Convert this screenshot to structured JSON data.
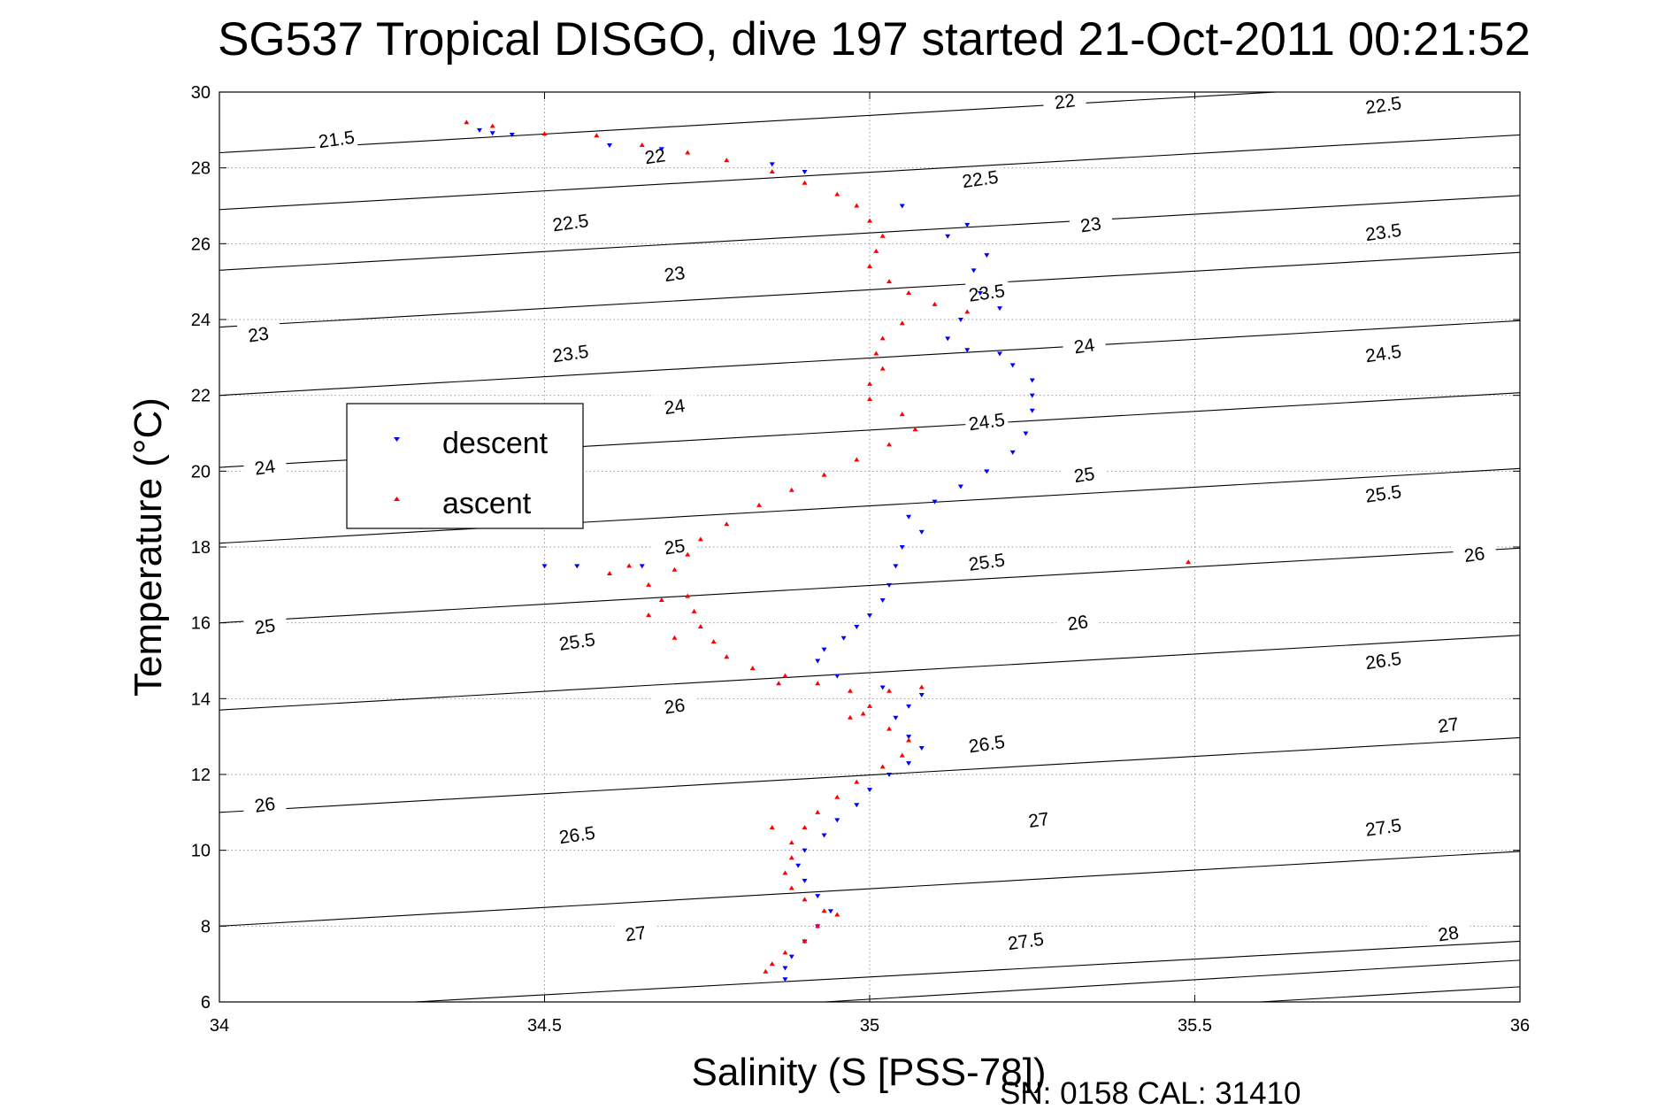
{
  "chart_data": {
    "type": "scatter",
    "title": "SG537 Tropical DISGO, dive 197 started 21-Oct-2011 00:21:52",
    "xlabel": "Salinity (S [PSS-78])",
    "ylabel": "Temperature (°C)",
    "footer": "SN: 0158  CAL: 31410",
    "xlim": [
      34,
      36
    ],
    "ylim": [
      6,
      30
    ],
    "xticks": [
      "34",
      "34.5",
      "35",
      "35.5",
      "36"
    ],
    "yticks": [
      "6",
      "8",
      "10",
      "12",
      "14",
      "16",
      "18",
      "20",
      "22",
      "24",
      "26",
      "28",
      "30"
    ],
    "grid": true,
    "legend_position": "upper-left",
    "legend": [
      "descent",
      "ascent"
    ],
    "series": [
      {
        "name": "descent",
        "color": "#0000ff",
        "marker": "triangle-down",
        "points": [
          [
            34.4,
            29.0
          ],
          [
            34.42,
            28.92
          ],
          [
            34.45,
            28.88
          ],
          [
            34.6,
            28.6
          ],
          [
            34.68,
            28.5
          ],
          [
            34.85,
            28.1
          ],
          [
            34.9,
            27.9
          ],
          [
            35.05,
            27.0
          ],
          [
            35.15,
            26.5
          ],
          [
            35.12,
            26.2
          ],
          [
            35.18,
            25.7
          ],
          [
            35.16,
            25.3
          ],
          [
            35.17,
            24.7
          ],
          [
            35.2,
            24.3
          ],
          [
            35.14,
            24.0
          ],
          [
            35.12,
            23.5
          ],
          [
            35.15,
            23.2
          ],
          [
            35.2,
            23.1
          ],
          [
            35.22,
            22.8
          ],
          [
            35.25,
            22.4
          ],
          [
            35.25,
            22.0
          ],
          [
            35.25,
            21.6
          ],
          [
            35.24,
            21.0
          ],
          [
            35.22,
            20.5
          ],
          [
            35.18,
            20.0
          ],
          [
            35.14,
            19.6
          ],
          [
            35.1,
            19.2
          ],
          [
            35.06,
            18.8
          ],
          [
            35.08,
            18.4
          ],
          [
            35.05,
            18.0
          ],
          [
            35.04,
            17.5
          ],
          [
            35.03,
            17.0
          ],
          [
            35.02,
            16.6
          ],
          [
            35.0,
            16.2
          ],
          [
            34.98,
            15.9
          ],
          [
            34.96,
            15.6
          ],
          [
            34.93,
            15.3
          ],
          [
            34.92,
            15.0
          ],
          [
            34.95,
            14.6
          ],
          [
            35.02,
            14.3
          ],
          [
            35.08,
            14.1
          ],
          [
            35.06,
            13.8
          ],
          [
            35.04,
            13.5
          ],
          [
            35.06,
            13.0
          ],
          [
            35.08,
            12.7
          ],
          [
            35.06,
            12.3
          ],
          [
            35.03,
            12.0
          ],
          [
            35.0,
            11.6
          ],
          [
            34.98,
            11.2
          ],
          [
            34.95,
            10.8
          ],
          [
            34.93,
            10.4
          ],
          [
            34.9,
            10.0
          ],
          [
            34.89,
            9.6
          ],
          [
            34.9,
            9.2
          ],
          [
            34.92,
            8.8
          ],
          [
            34.94,
            8.4
          ],
          [
            34.92,
            8.0
          ],
          [
            34.9,
            7.6
          ],
          [
            34.88,
            7.2
          ],
          [
            34.87,
            6.9
          ],
          [
            34.87,
            6.6
          ],
          [
            34.5,
            17.5
          ],
          [
            34.55,
            17.5
          ],
          [
            34.65,
            17.5
          ]
        ]
      },
      {
        "name": "ascent",
        "color": "#ff0000",
        "marker": "triangle-up",
        "points": [
          [
            34.38,
            29.2
          ],
          [
            34.42,
            29.1
          ],
          [
            34.5,
            28.9
          ],
          [
            34.58,
            28.85
          ],
          [
            34.65,
            28.6
          ],
          [
            34.72,
            28.4
          ],
          [
            34.78,
            28.2
          ],
          [
            34.85,
            27.9
          ],
          [
            34.9,
            27.6
          ],
          [
            34.95,
            27.3
          ],
          [
            34.98,
            27.0
          ],
          [
            35.0,
            26.6
          ],
          [
            35.02,
            26.2
          ],
          [
            35.01,
            25.8
          ],
          [
            35.0,
            25.4
          ],
          [
            35.03,
            25.0
          ],
          [
            35.06,
            24.7
          ],
          [
            35.1,
            24.4
          ],
          [
            35.15,
            24.2
          ],
          [
            35.05,
            23.9
          ],
          [
            35.02,
            23.5
          ],
          [
            35.01,
            23.1
          ],
          [
            35.02,
            22.7
          ],
          [
            35.0,
            22.3
          ],
          [
            35.0,
            21.9
          ],
          [
            35.05,
            21.5
          ],
          [
            35.07,
            21.1
          ],
          [
            35.03,
            20.7
          ],
          [
            34.98,
            20.3
          ],
          [
            34.93,
            19.9
          ],
          [
            34.88,
            19.5
          ],
          [
            34.83,
            19.1
          ],
          [
            34.78,
            18.6
          ],
          [
            34.74,
            18.2
          ],
          [
            34.72,
            17.8
          ],
          [
            34.7,
            17.4
          ],
          [
            34.66,
            17.0
          ],
          [
            34.72,
            16.7
          ],
          [
            34.73,
            16.3
          ],
          [
            34.74,
            15.9
          ],
          [
            34.76,
            15.5
          ],
          [
            34.78,
            15.1
          ],
          [
            34.82,
            14.8
          ],
          [
            34.87,
            14.6
          ],
          [
            34.92,
            14.4
          ],
          [
            34.97,
            14.2
          ],
          [
            35.03,
            14.2
          ],
          [
            35.0,
            13.8
          ],
          [
            34.97,
            13.5
          ],
          [
            35.03,
            13.2
          ],
          [
            35.06,
            12.9
          ],
          [
            35.05,
            12.5
          ],
          [
            35.02,
            12.2
          ],
          [
            34.98,
            11.8
          ],
          [
            34.95,
            11.4
          ],
          [
            34.92,
            11.0
          ],
          [
            34.9,
            10.6
          ],
          [
            34.88,
            10.2
          ],
          [
            34.88,
            9.8
          ],
          [
            34.87,
            9.4
          ],
          [
            34.88,
            9.0
          ],
          [
            34.9,
            8.7
          ],
          [
            34.93,
            8.4
          ],
          [
            34.95,
            8.3
          ],
          [
            34.92,
            8.0
          ],
          [
            34.9,
            7.6
          ],
          [
            34.87,
            7.3
          ],
          [
            34.85,
            7.0
          ],
          [
            34.84,
            6.8
          ],
          [
            35.49,
            17.6
          ],
          [
            34.63,
            17.5
          ],
          [
            34.6,
            17.3
          ],
          [
            34.68,
            16.6
          ],
          [
            34.66,
            16.2
          ],
          [
            34.7,
            15.6
          ],
          [
            34.86,
            14.4
          ],
          [
            35.08,
            14.3
          ],
          [
            34.99,
            13.6
          ],
          [
            34.85,
            10.6
          ]
        ]
      }
    ],
    "contours": [
      {
        "level": "21.5",
        "p": [
          [
            34.0,
            28.4
          ],
          [
            36.0,
            30.37
          ]
        ]
      },
      {
        "level": "22",
        "p": [
          [
            34.0,
            26.9
          ],
          [
            36.0,
            28.87
          ]
        ]
      },
      {
        "level": "22.5",
        "p": [
          [
            34.0,
            25.3
          ],
          [
            36.0,
            27.27
          ]
        ]
      },
      {
        "level": "23",
        "p": [
          [
            34.0,
            23.8
          ],
          [
            36.0,
            25.77
          ]
        ]
      },
      {
        "level": "23.5",
        "p": [
          [
            34.0,
            22.0
          ],
          [
            36.0,
            23.97
          ]
        ]
      },
      {
        "level": "24",
        "p": [
          [
            34.0,
            20.1
          ],
          [
            36.0,
            22.07
          ]
        ]
      },
      {
        "level": "24.5",
        "p": [
          [
            34.0,
            18.1
          ],
          [
            36.0,
            20.07
          ]
        ]
      },
      {
        "level": "25",
        "p": [
          [
            34.0,
            16.0
          ],
          [
            36.0,
            17.97
          ]
        ]
      },
      {
        "level": "25.5",
        "p": [
          [
            34.0,
            13.7
          ],
          [
            36.0,
            15.67
          ]
        ]
      },
      {
        "level": "26",
        "p": [
          [
            34.0,
            11.0
          ],
          [
            36.0,
            12.97
          ]
        ]
      },
      {
        "level": "26.5",
        "p": [
          [
            34.0,
            8.0
          ],
          [
            36.0,
            9.97
          ]
        ]
      },
      {
        "level": "27",
        "p": [
          [
            34.3,
            6.0
          ],
          [
            36.0,
            7.6
          ]
        ]
      },
      {
        "level": "27.5",
        "p": [
          [
            34.93,
            6.0
          ],
          [
            36.0,
            7.1
          ]
        ]
      },
      {
        "level": "28",
        "p": [
          [
            35.6,
            6.0
          ],
          [
            36.0,
            6.4
          ]
        ]
      }
    ],
    "contour_labels": [
      {
        "t": "21.5",
        "x": 34.18,
        "y": 28.75
      },
      {
        "t": "22",
        "x": 34.67,
        "y": 28.3
      },
      {
        "t": "22",
        "x": 35.3,
        "y": 29.75
      },
      {
        "t": "22.5",
        "x": 35.79,
        "y": 29.65
      },
      {
        "t": "22.5",
        "x": 34.54,
        "y": 26.55
      },
      {
        "t": "22.5",
        "x": 35.17,
        "y": 27.7
      },
      {
        "t": "23",
        "x": 34.7,
        "y": 25.2
      },
      {
        "t": "23",
        "x": 35.34,
        "y": 26.5
      },
      {
        "t": "23",
        "x": 34.06,
        "y": 23.6
      },
      {
        "t": "23.5",
        "x": 35.79,
        "y": 26.3
      },
      {
        "t": "23.5",
        "x": 35.18,
        "y": 24.7
      },
      {
        "t": "23.5",
        "x": 34.54,
        "y": 23.1
      },
      {
        "t": "24",
        "x": 35.33,
        "y": 23.3
      },
      {
        "t": "24",
        "x": 34.7,
        "y": 21.7
      },
      {
        "t": "24",
        "x": 34.07,
        "y": 20.1
      },
      {
        "t": "24.5",
        "x": 35.79,
        "y": 23.1
      },
      {
        "t": "24.5",
        "x": 35.18,
        "y": 21.3
      },
      {
        "t": "25",
        "x": 35.33,
        "y": 19.9
      },
      {
        "t": "25",
        "x": 34.7,
        "y": 18.0
      },
      {
        "t": "25",
        "x": 34.07,
        "y": 15.9
      },
      {
        "t": "25.5",
        "x": 35.79,
        "y": 19.4
      },
      {
        "t": "25.5",
        "x": 35.18,
        "y": 17.6
      },
      {
        "t": "25.5",
        "x": 34.55,
        "y": 15.5
      },
      {
        "t": "26",
        "x": 35.93,
        "y": 17.8
      },
      {
        "t": "26",
        "x": 35.32,
        "y": 16.0
      },
      {
        "t": "26",
        "x": 34.7,
        "y": 13.8
      },
      {
        "t": "26",
        "x": 34.07,
        "y": 11.2
      },
      {
        "t": "26.5",
        "x": 35.79,
        "y": 15.0
      },
      {
        "t": "26.5",
        "x": 35.18,
        "y": 12.8
      },
      {
        "t": "26.5",
        "x": 34.55,
        "y": 10.4
      },
      {
        "t": "27",
        "x": 35.89,
        "y": 13.3
      },
      {
        "t": "27",
        "x": 35.26,
        "y": 10.8
      },
      {
        "t": "27",
        "x": 34.64,
        "y": 7.8
      },
      {
        "t": "27.5",
        "x": 35.79,
        "y": 10.6
      },
      {
        "t": "27.5",
        "x": 35.24,
        "y": 7.6
      },
      {
        "t": "28",
        "x": 35.89,
        "y": 7.8
      }
    ]
  }
}
